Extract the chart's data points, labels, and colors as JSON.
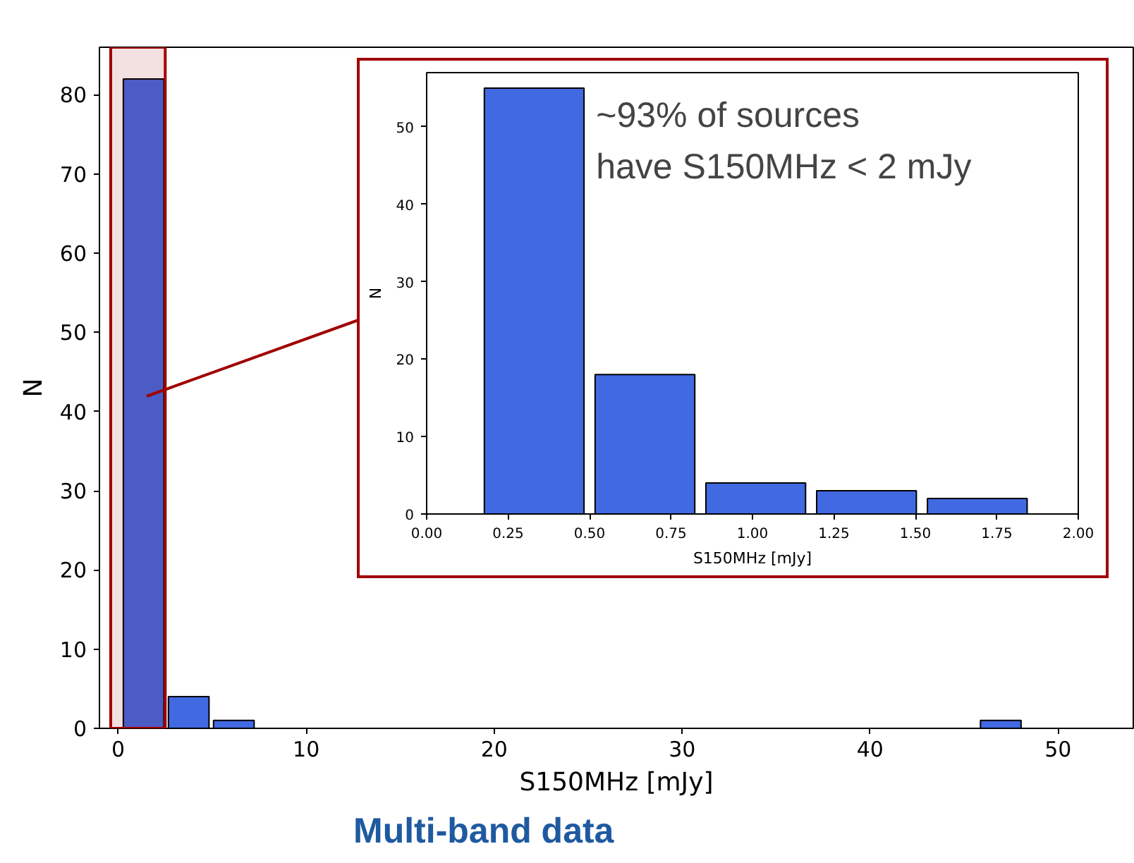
{
  "chart_data": [
    {
      "type": "histogram",
      "title": "Multi-band data",
      "xlabel": "S150MHz [mJy]",
      "ylabel": "N",
      "color": "#4169e1",
      "bins": [
        0.15,
        2.55,
        4.95,
        7.35,
        9.75,
        12.15,
        14.55,
        16.95,
        19.35,
        21.75,
        24.15,
        26.55,
        28.95,
        31.35,
        33.75,
        36.15,
        38.55,
        40.95,
        43.35,
        45.75,
        48.15
      ],
      "values": [
        82,
        4,
        1,
        0,
        0,
        0,
        0,
        0,
        0,
        0,
        0,
        0,
        0,
        0,
        0,
        0,
        0,
        0,
        0,
        1
      ],
      "bands": [
        {
          "axis": "x",
          "from": -0.4,
          "to": 2.5,
          "color": "#a00000"
        }
      ],
      "xlim": [
        -1,
        54
      ],
      "ylim": [
        0,
        86
      ],
      "xticks": [
        0,
        10,
        20,
        30,
        40,
        50
      ],
      "yticks": [
        0,
        10,
        20,
        30,
        40,
        50,
        60,
        70,
        80
      ],
      "grid": false
    },
    {
      "type": "histogram",
      "xlabel": "S150MHz [mJy]",
      "ylabel": "N",
      "color": "#4169e1",
      "bins": [
        0.16,
        0.5,
        0.84,
        1.18,
        1.52,
        1.86
      ],
      "values": [
        55,
        18,
        4,
        3,
        2
      ],
      "xlim": [
        0,
        2
      ],
      "ylim": [
        0,
        57
      ],
      "xticks": [
        {
          "value": 0,
          "label": "0.00"
        },
        {
          "value": 0.25,
          "label": "0.25"
        },
        {
          "value": 0.5,
          "label": "0.50"
        },
        {
          "value": 0.75,
          "label": "0.75"
        },
        {
          "value": 1,
          "label": "1.00"
        },
        {
          "value": 1.25,
          "label": "1.25"
        },
        {
          "value": 1.5,
          "label": "1.50"
        },
        {
          "value": 1.75,
          "label": "1.75"
        },
        {
          "value": 2,
          "label": "2.00"
        }
      ],
      "yticks": [
        0,
        10,
        20,
        30,
        40,
        50
      ],
      "grid": false,
      "annotations": [
        "~93% of sources\nhave S150MHz < 2 mJy"
      ]
    }
  ]
}
